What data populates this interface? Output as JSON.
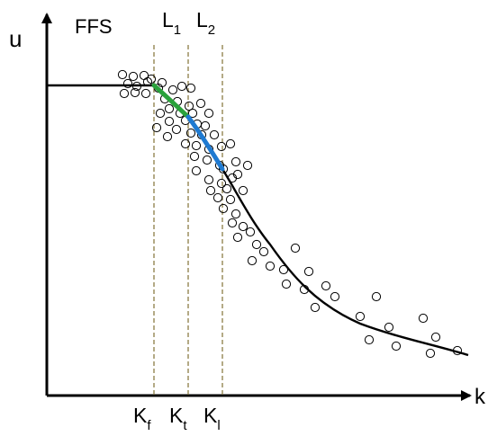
{
  "labels": {
    "y_axis": "u",
    "x_axis": "k",
    "free_flow": "FFS",
    "l1": {
      "base": "L",
      "sub": "1"
    },
    "l2": {
      "base": "L",
      "sub": "2"
    },
    "kf": {
      "base": "K",
      "sub": "f"
    },
    "kt": {
      "base": "K",
      "sub": "t"
    },
    "kl": {
      "base": "K",
      "sub": "l"
    }
  },
  "colors": {
    "axis": "#000000",
    "fitted_curve": "#000000",
    "dashed_lines": "#8b7d45",
    "segment_l1": "#2aa23b",
    "segment_l2": "#1f7ad1",
    "points": "#000000"
  }
}
